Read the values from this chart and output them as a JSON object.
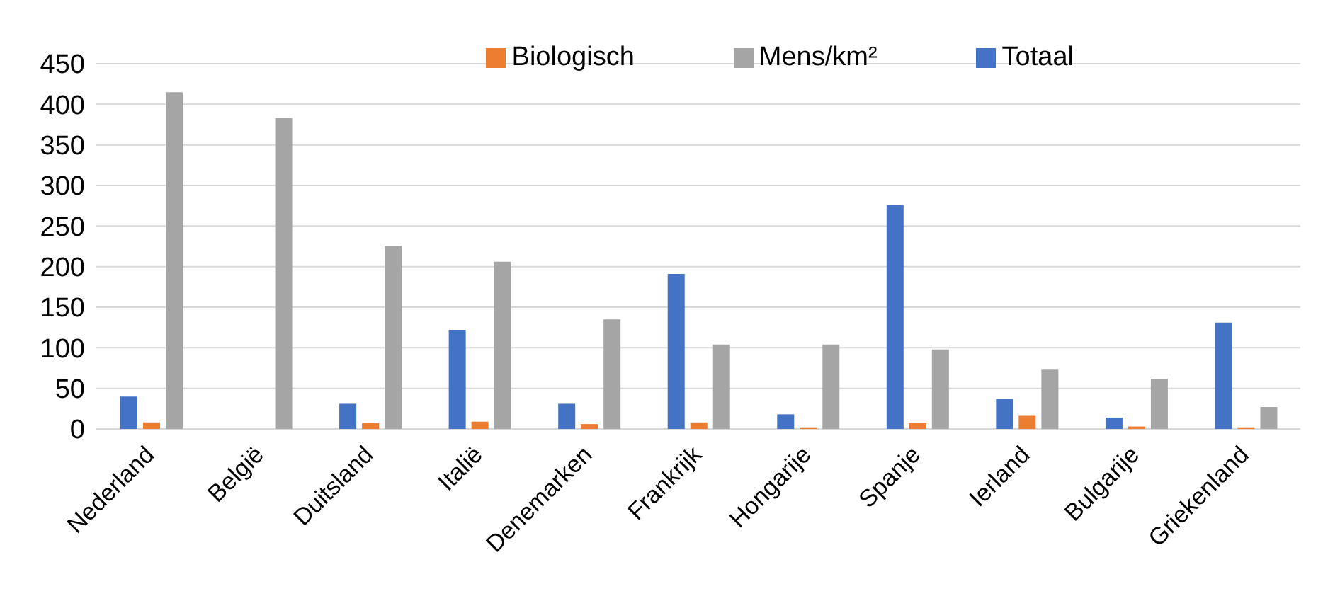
{
  "chart_data": {
    "type": "bar",
    "categories": [
      "Nederland",
      "België",
      "Duitsland",
      "Italië",
      "Denemarken",
      "Frankrijk",
      "Hongarije",
      "Spanje",
      "Ierland",
      "Bulgarije",
      "Griekenland"
    ],
    "series": [
      {
        "name": "Totaal",
        "color": "#4472c4",
        "values": [
          40,
          null,
          31,
          122,
          31,
          191,
          18,
          276,
          37,
          14,
          131
        ]
      },
      {
        "name": "Biologisch",
        "color": "#ed7d31",
        "values": [
          8,
          null,
          7,
          9,
          6,
          8,
          2,
          7,
          17,
          3,
          2
        ]
      },
      {
        "name": "Mens/km²",
        "color": "#a5a5a5",
        "values": [
          415,
          383,
          225,
          206,
          135,
          104,
          104,
          98,
          73,
          62,
          27
        ]
      }
    ],
    "ylim": [
      0,
      450
    ],
    "yticks": [
      0,
      50,
      100,
      150,
      200,
      250,
      300,
      350,
      400,
      450
    ],
    "grid": "y",
    "legend": "top right"
  }
}
